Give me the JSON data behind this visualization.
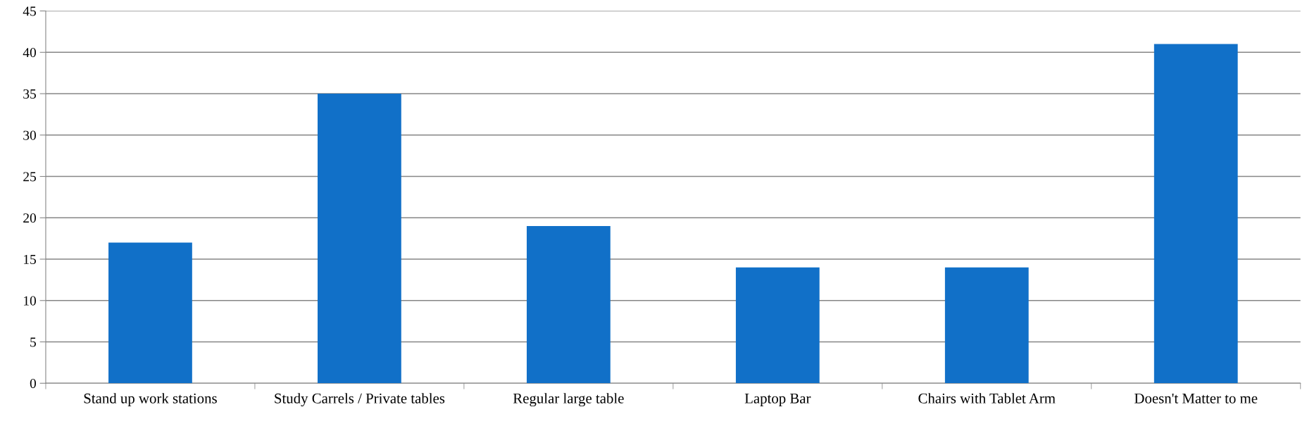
{
  "chart_data": {
    "type": "bar",
    "categories": [
      "Stand up work stations",
      "Study Carrels / Private tables",
      "Regular large table",
      "Laptop Bar",
      "Chairs with Tablet Arm",
      "Doesn't Matter to me"
    ],
    "values": [
      17,
      35,
      19,
      14,
      14,
      41
    ],
    "color": "#1170c8",
    "ylim": [
      0,
      45
    ],
    "yticks": [
      0,
      5,
      10,
      15,
      20,
      25,
      30,
      35,
      40,
      45
    ],
    "grid": "y",
    "legend": false
  }
}
